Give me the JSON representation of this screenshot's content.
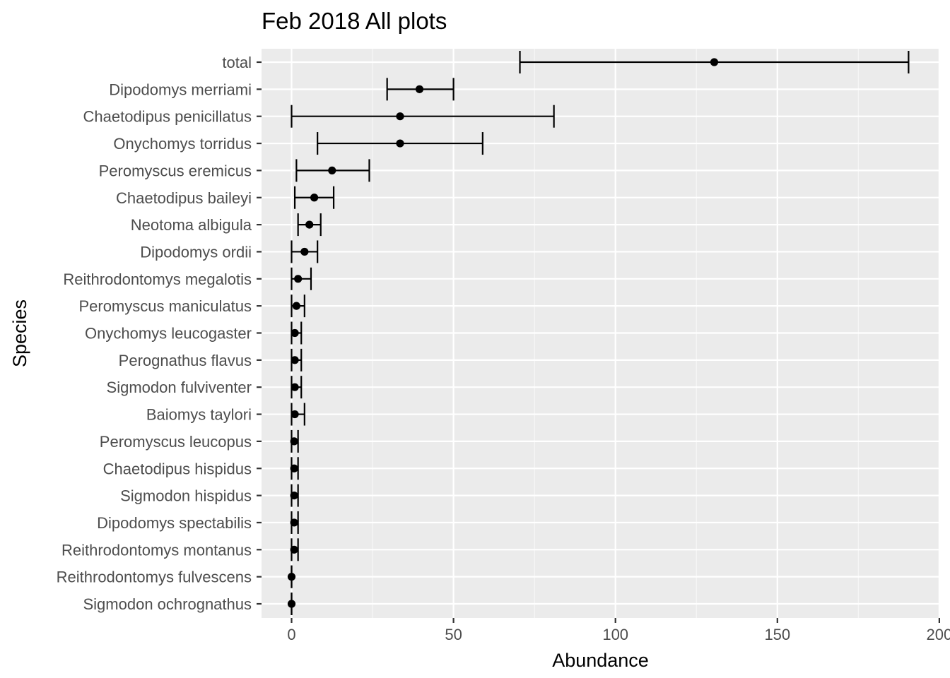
{
  "chart_data": {
    "type": "errorbar",
    "title": "Feb 2018 All plots",
    "xlabel": "Abundance",
    "ylabel": "Species",
    "xlim": [
      -9.5,
      200
    ],
    "xticks": [
      0,
      50,
      100,
      150,
      200
    ],
    "grid": true,
    "legend": "none",
    "colors": {
      "panel": "#ebebeb",
      "grid_major": "#ffffff",
      "grid_minor": "#f7f7f7",
      "mark": "#000000",
      "tick_text": "#4d4d4d"
    },
    "series": [
      {
        "species": "total",
        "estimate": 130.5,
        "lower": 70.5,
        "upper": 190.5
      },
      {
        "species": "Dipodomys merriami",
        "estimate": 39.5,
        "lower": 29.5,
        "upper": 50
      },
      {
        "species": "Chaetodipus penicillatus",
        "estimate": 33.5,
        "lower": 0,
        "upper": 81
      },
      {
        "species": "Onychomys torridus",
        "estimate": 33.5,
        "lower": 8,
        "upper": 59
      },
      {
        "species": "Peromyscus eremicus",
        "estimate": 12.5,
        "lower": 1.5,
        "upper": 24
      },
      {
        "species": "Chaetodipus baileyi",
        "estimate": 7,
        "lower": 1,
        "upper": 13
      },
      {
        "species": "Neotoma albigula",
        "estimate": 5.5,
        "lower": 2,
        "upper": 9
      },
      {
        "species": "Dipodomys ordii",
        "estimate": 4,
        "lower": 0,
        "upper": 8
      },
      {
        "species": "Reithrodontomys megalotis",
        "estimate": 2,
        "lower": 0,
        "upper": 6
      },
      {
        "species": "Peromyscus maniculatus",
        "estimate": 1.5,
        "lower": 0,
        "upper": 4
      },
      {
        "species": "Onychomys leucogaster",
        "estimate": 1,
        "lower": 0,
        "upper": 3
      },
      {
        "species": "Perognathus flavus",
        "estimate": 1,
        "lower": 0,
        "upper": 3
      },
      {
        "species": "Sigmodon fulviventer",
        "estimate": 1,
        "lower": 0,
        "upper": 3
      },
      {
        "species": "Baiomys taylori",
        "estimate": 1,
        "lower": 0,
        "upper": 4
      },
      {
        "species": "Peromyscus leucopus",
        "estimate": 0.8,
        "lower": 0,
        "upper": 2
      },
      {
        "species": "Chaetodipus hispidus",
        "estimate": 0.8,
        "lower": 0,
        "upper": 2
      },
      {
        "species": "Sigmodon hispidus",
        "estimate": 0.8,
        "lower": 0,
        "upper": 2
      },
      {
        "species": "Dipodomys spectabilis",
        "estimate": 0.8,
        "lower": 0,
        "upper": 2
      },
      {
        "species": "Reithrodontomys montanus",
        "estimate": 0.8,
        "lower": 0,
        "upper": 2
      },
      {
        "species": "Reithrodontomys fulvescens",
        "estimate": 0,
        "lower": 0,
        "upper": 0
      },
      {
        "species": "Sigmodon ochrognathus",
        "estimate": 0,
        "lower": 0,
        "upper": 0
      }
    ]
  }
}
